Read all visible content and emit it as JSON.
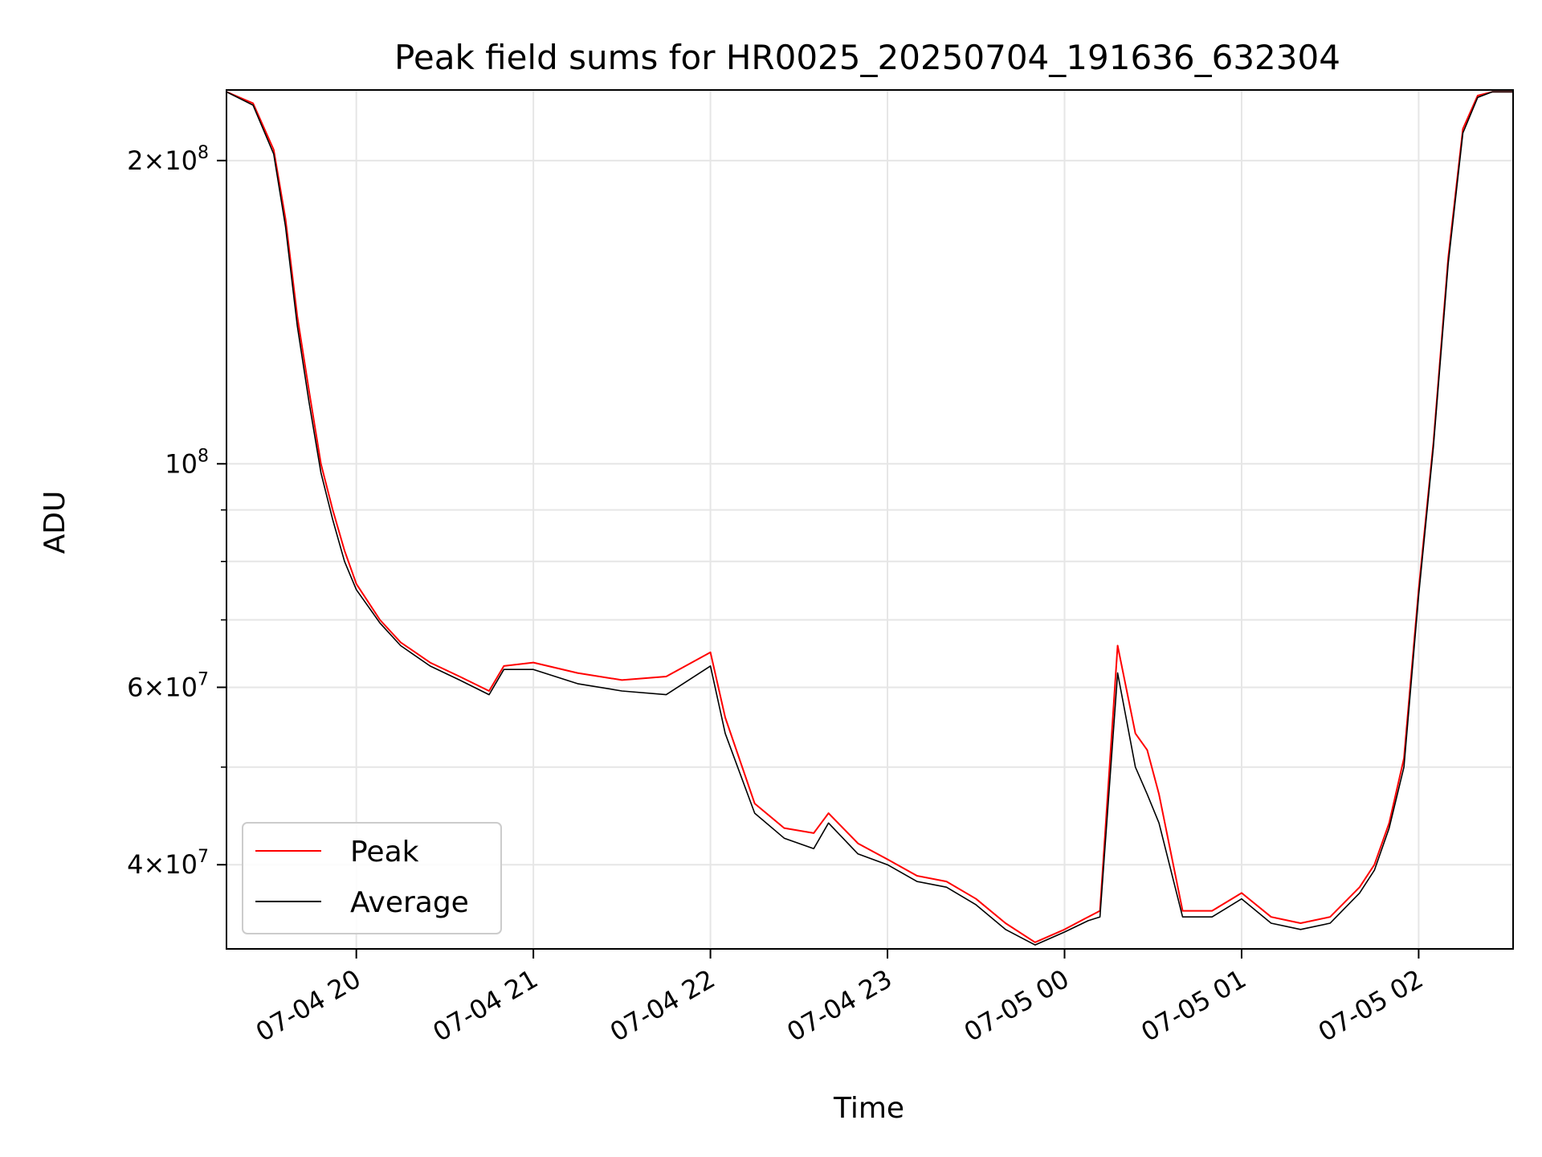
{
  "chart_data": {
    "type": "line",
    "title": "Peak field sums for HR0025_20250704_191636_632304",
    "xlabel": "Time",
    "ylabel": "ADU",
    "yscale": "log",
    "grid": true,
    "legend_position": "lower-left",
    "xlim": [
      "07-04 19:16",
      "07-05 02:32"
    ],
    "ylim": [
      33000000,
      235000000
    ],
    "x_ticks": [
      {
        "t": "07-04 20:00",
        "label": "07-04 20"
      },
      {
        "t": "07-04 21:00",
        "label": "07-04 21"
      },
      {
        "t": "07-04 22:00",
        "label": "07-04 22"
      },
      {
        "t": "07-04 23:00",
        "label": "07-04 23"
      },
      {
        "t": "07-05 00:00",
        "label": "07-05 00"
      },
      {
        "t": "07-05 01:00",
        "label": "07-05 01"
      },
      {
        "t": "07-05 02:00",
        "label": "07-05 02"
      }
    ],
    "y_ticks": [
      {
        "v": 40000000,
        "mant": "4",
        "exp": "7"
      },
      {
        "v": 60000000,
        "mant": "6",
        "exp": "7"
      },
      {
        "v": 100000000,
        "mant": "",
        "exp": "8"
      },
      {
        "v": 200000000,
        "mant": "2",
        "exp": "8"
      }
    ],
    "y_minor_ticks": [
      50000000,
      70000000,
      80000000,
      90000000
    ],
    "series": [
      {
        "name": "Peak",
        "color": "#ff0000",
        "x": [
          "07-04 19:16",
          "07-04 19:25",
          "07-04 19:32",
          "07-04 19:36",
          "07-04 19:40",
          "07-04 19:44",
          "07-04 19:48",
          "07-04 19:52",
          "07-04 19:56",
          "07-04 20:00",
          "07-04 20:08",
          "07-04 20:15",
          "07-04 20:25",
          "07-04 20:35",
          "07-04 20:45",
          "07-04 20:50",
          "07-04 21:00",
          "07-04 21:15",
          "07-04 21:30",
          "07-04 21:45",
          "07-04 22:00",
          "07-04 22:05",
          "07-04 22:15",
          "07-04 22:25",
          "07-04 22:35",
          "07-04 22:40",
          "07-04 22:50",
          "07-04 23:00",
          "07-04 23:10",
          "07-04 23:20",
          "07-04 23:30",
          "07-04 23:40",
          "07-04 23:50",
          "07-05 00:00",
          "07-05 00:08",
          "07-05 00:12",
          "07-05 00:18",
          "07-05 00:24",
          "07-05 00:28",
          "07-05 00:32",
          "07-05 00:40",
          "07-05 00:50",
          "07-05 01:00",
          "07-05 01:10",
          "07-05 01:20",
          "07-05 01:30",
          "07-05 01:40",
          "07-05 01:45",
          "07-05 01:50",
          "07-05 01:55",
          "07-05 02:00",
          "07-05 02:05",
          "07-05 02:10",
          "07-05 02:15",
          "07-05 02:20",
          "07-05 02:25",
          "07-05 02:32"
        ],
        "y": [
          234000000,
          228000000,
          205000000,
          175000000,
          140000000,
          118000000,
          100000000,
          90000000,
          82000000,
          76000000,
          70000000,
          66500000,
          63500000,
          61500000,
          59500000,
          63000000,
          63500000,
          62000000,
          61000000,
          61500000,
          65000000,
          56000000,
          46000000,
          43500000,
          43000000,
          45000000,
          42000000,
          40500000,
          39000000,
          38500000,
          37000000,
          35000000,
          33500000,
          34500000,
          35500000,
          36000000,
          66000000,
          54000000,
          52000000,
          47000000,
          36000000,
          36000000,
          37500000,
          35500000,
          35000000,
          35500000,
          38000000,
          40000000,
          44000000,
          51000000,
          75000000,
          105000000,
          160000000,
          215000000,
          232000000,
          234000000,
          234000000
        ]
      },
      {
        "name": "Average",
        "color": "#000000",
        "x": [
          "07-04 19:16",
          "07-04 19:25",
          "07-04 19:32",
          "07-04 19:36",
          "07-04 19:40",
          "07-04 19:44",
          "07-04 19:48",
          "07-04 19:52",
          "07-04 19:56",
          "07-04 20:00",
          "07-04 20:08",
          "07-04 20:15",
          "07-04 20:25",
          "07-04 20:35",
          "07-04 20:45",
          "07-04 20:50",
          "07-04 21:00",
          "07-04 21:15",
          "07-04 21:30",
          "07-04 21:45",
          "07-04 22:00",
          "07-04 22:05",
          "07-04 22:15",
          "07-04 22:25",
          "07-04 22:35",
          "07-04 22:40",
          "07-04 22:50",
          "07-04 23:00",
          "07-04 23:10",
          "07-04 23:20",
          "07-04 23:30",
          "07-04 23:40",
          "07-04 23:50",
          "07-05 00:00",
          "07-05 00:08",
          "07-05 00:12",
          "07-05 00:18",
          "07-05 00:24",
          "07-05 00:28",
          "07-05 00:32",
          "07-05 00:40",
          "07-05 00:50",
          "07-05 01:00",
          "07-05 01:10",
          "07-05 01:20",
          "07-05 01:30",
          "07-05 01:40",
          "07-05 01:45",
          "07-05 01:50",
          "07-05 01:55",
          "07-05 02:00",
          "07-05 02:05",
          "07-05 02:10",
          "07-05 02:15",
          "07-05 02:20",
          "07-05 02:25",
          "07-05 02:32"
        ],
        "y": [
          234000000,
          227000000,
          203000000,
          172000000,
          137000000,
          115000000,
          98000000,
          88000000,
          80000000,
          75000000,
          69500000,
          66000000,
          63000000,
          61000000,
          59000000,
          62500000,
          62500000,
          60500000,
          59500000,
          59000000,
          63000000,
          54000000,
          45000000,
          42500000,
          41500000,
          44000000,
          41000000,
          40000000,
          38500000,
          38000000,
          36500000,
          34500000,
          33300000,
          34300000,
          35200000,
          35500000,
          62000000,
          50000000,
          47000000,
          44000000,
          35500000,
          35500000,
          37000000,
          35000000,
          34500000,
          35000000,
          37500000,
          39500000,
          43500000,
          50000000,
          74000000,
          104000000,
          158000000,
          213000000,
          231000000,
          234000000,
          234000000
        ]
      }
    ]
  }
}
